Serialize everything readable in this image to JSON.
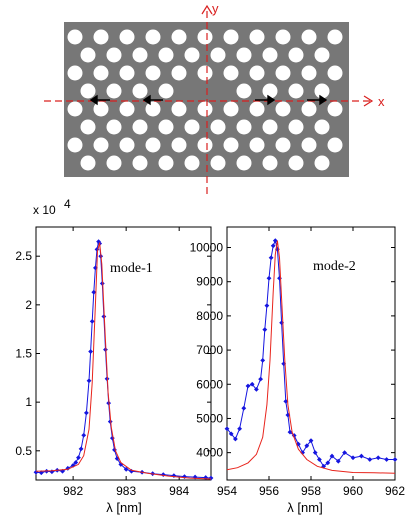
{
  "schematic": {
    "x_axis_label": "x",
    "y_axis_label": "y",
    "colors": {
      "slab": "#777777",
      "holes": "#ffffff",
      "axes": "#d9201f",
      "arrows": "#000000"
    }
  },
  "chart_data": [
    {
      "type": "scatter",
      "annotation": "mode-1",
      "xlabel": "λ [nm]",
      "ylabel": "",
      "y_exponent_label": "x 10",
      "y_exponent_power": "4",
      "xlim": [
        981.3,
        984.6
      ],
      "ylim": [
        2000,
        28000
      ],
      "xticks": [
        982,
        983,
        984
      ],
      "xtick_labels": [
        "982",
        "983",
        "984"
      ],
      "yticks": [
        5000,
        10000,
        15000,
        20000,
        25000
      ],
      "ytick_labels": [
        "0.5",
        "1",
        "1.5",
        "2",
        "2.5"
      ],
      "grid": false,
      "series": [
        {
          "kind": "fit",
          "color": "#e8241c",
          "x": [
            981.3,
            981.6,
            981.9,
            982.1,
            982.2,
            982.3,
            982.36,
            982.42,
            982.46,
            982.5,
            982.54,
            982.6,
            982.66,
            982.72,
            982.8,
            982.9,
            983.1,
            983.4,
            983.8,
            984.2,
            984.6
          ],
          "y": [
            2900,
            2950,
            3100,
            3600,
            4500,
            7200,
            12000,
            20000,
            25500,
            26400,
            24200,
            17500,
            11000,
            7400,
            5000,
            3800,
            3000,
            2700,
            2400,
            2200,
            2100
          ]
        },
        {
          "kind": "measured",
          "color": "#1515e0",
          "x": [
            981.3,
            981.4,
            981.5,
            981.6,
            981.7,
            981.8,
            981.9,
            982.0,
            982.05,
            982.1,
            982.15,
            982.2,
            982.25,
            982.3,
            982.33,
            982.36,
            982.39,
            982.42,
            982.45,
            982.48,
            982.5,
            982.52,
            982.55,
            982.58,
            982.61,
            982.64,
            982.67,
            982.7,
            982.74,
            982.78,
            982.83,
            982.9,
            983.0,
            983.1,
            983.3,
            983.5,
            983.7,
            983.9,
            984.1,
            984.3,
            984.5,
            984.6
          ],
          "y": [
            2800,
            2750,
            2900,
            2850,
            3000,
            2900,
            3200,
            3500,
            3800,
            4300,
            5200,
            6600,
            8900,
            12200,
            15200,
            18300,
            21300,
            23800,
            25700,
            26500,
            26300,
            25000,
            22200,
            18800,
            15400,
            12400,
            9900,
            8000,
            6300,
            5100,
            4200,
            3600,
            3100,
            2900,
            2800,
            2650,
            2550,
            2450,
            2350,
            2300,
            2250,
            2200
          ]
        }
      ]
    },
    {
      "type": "scatter",
      "annotation": "mode-2",
      "xlabel": "λ [nm]",
      "ylabel": "",
      "xlim": [
        954,
        962
      ],
      "ylim": [
        3200,
        10600
      ],
      "xticks": [
        954,
        956,
        958,
        960,
        962
      ],
      "xtick_labels": [
        "954",
        "956",
        "958",
        "960",
        "962"
      ],
      "yticks": [
        4000,
        5000,
        6000,
        7000,
        8000,
        9000,
        10000
      ],
      "ytick_labels": [
        "4000",
        "5000",
        "6000",
        "7000",
        "8000",
        "9000",
        "10000"
      ],
      "grid": false,
      "series": [
        {
          "kind": "fit",
          "color": "#e8241c",
          "x": [
            954.0,
            954.5,
            955.0,
            955.4,
            955.7,
            955.9,
            956.05,
            956.2,
            956.3,
            956.4,
            956.5,
            956.6,
            956.75,
            956.9,
            957.1,
            957.4,
            957.8,
            958.3,
            959.0,
            960.0,
            961.0,
            962.0
          ],
          "y": [
            3500,
            3560,
            3700,
            3950,
            4450,
            5400,
            6700,
            8700,
            9800,
            10200,
            9700,
            8500,
            6700,
            5400,
            4600,
            4100,
            3800,
            3600,
            3480,
            3420,
            3410,
            3400
          ]
        },
        {
          "kind": "measured",
          "color": "#1515e0",
          "x": [
            954.0,
            954.2,
            954.4,
            954.6,
            954.8,
            955.0,
            955.2,
            955.4,
            955.6,
            955.7,
            955.8,
            955.9,
            956.0,
            956.1,
            956.2,
            956.3,
            956.4,
            956.5,
            956.6,
            956.7,
            956.8,
            956.9,
            957.0,
            957.2,
            957.4,
            957.6,
            957.8,
            958.0,
            958.2,
            958.4,
            958.6,
            958.8,
            959.0,
            959.3,
            959.6,
            960.0,
            960.4,
            960.8,
            961.2,
            961.6,
            962.0
          ],
          "y": [
            4700,
            4550,
            4400,
            4700,
            5300,
            5950,
            6000,
            5850,
            6150,
            6700,
            7600,
            8300,
            9100,
            9700,
            10050,
            10200,
            9950,
            9100,
            7800,
            6600,
            5500,
            5100,
            4600,
            4500,
            4250,
            4000,
            4200,
            4350,
            4000,
            3800,
            3600,
            3700,
            3900,
            3750,
            4000,
            3850,
            3900,
            3800,
            3850,
            3800,
            3800
          ]
        }
      ]
    }
  ]
}
